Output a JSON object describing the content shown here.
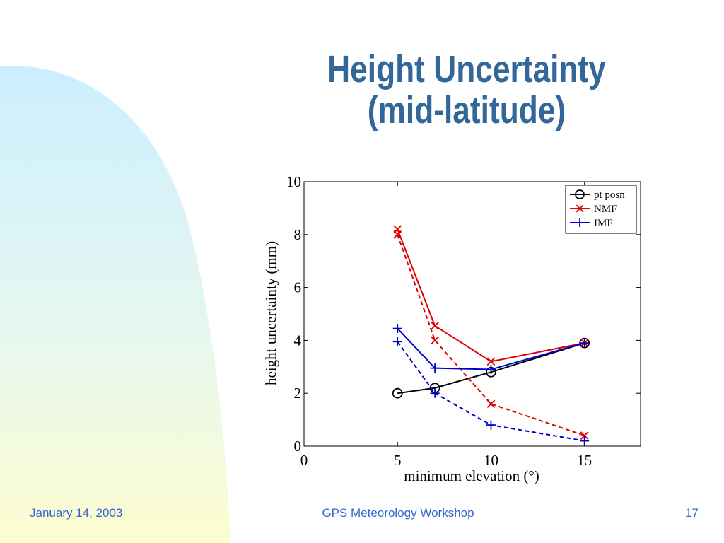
{
  "slide": {
    "title_line1": "Height Uncertainty",
    "title_line2": "(mid-latitude)",
    "footer_date": "January 14, 2003",
    "footer_event": "GPS Meteorology Workshop",
    "page_number": "17",
    "title_color": "#336699",
    "footer_color": "#3366cc"
  },
  "chart_data": {
    "type": "line",
    "xlabel": "minimum elevation (°)",
    "ylabel": "height uncertainty (mm)",
    "xlim": [
      0,
      18
    ],
    "ylim": [
      0,
      10
    ],
    "xticks": [
      0,
      5,
      10,
      15
    ],
    "yticks": [
      0,
      2,
      4,
      6,
      8,
      10
    ],
    "grid": false,
    "legend_placement": "top-right",
    "legend": [
      {
        "label": "pt posn",
        "color": "#000000",
        "marker": "circle"
      },
      {
        "label": "NMF",
        "color": "#dd0000",
        "marker": "x"
      },
      {
        "label": "IMF",
        "color": "#0000cc",
        "marker": "plus"
      }
    ],
    "series": [
      {
        "legend": 0,
        "style": "solid",
        "x": [
          5,
          7,
          10,
          15
        ],
        "y": [
          2.0,
          2.2,
          2.8,
          3.9
        ]
      },
      {
        "legend": 1,
        "style": "solid",
        "x": [
          5,
          7,
          10,
          15
        ],
        "y": [
          8.2,
          4.55,
          3.2,
          3.9
        ]
      },
      {
        "legend": 1,
        "style": "dashed",
        "x": [
          5,
          7,
          10,
          15
        ],
        "y": [
          8.0,
          4.0,
          1.6,
          0.4
        ]
      },
      {
        "legend": 2,
        "style": "solid",
        "x": [
          5,
          7,
          10,
          15
        ],
        "y": [
          4.45,
          2.95,
          2.9,
          3.9
        ]
      },
      {
        "legend": 2,
        "style": "dashed",
        "x": [
          5,
          7,
          10,
          15
        ],
        "y": [
          3.95,
          2.0,
          0.8,
          0.2
        ]
      }
    ]
  }
}
